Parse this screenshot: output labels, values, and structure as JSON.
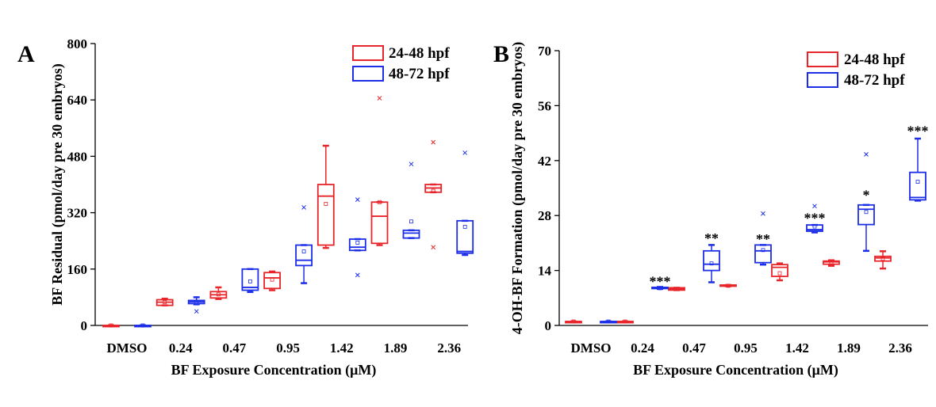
{
  "chart_data": [
    {
      "type": "box",
      "panel_label": "A",
      "xlabel": "BF Exposure Concentration (μM)",
      "ylabel": "BF Residual (pmol/day pre 30 embryos)",
      "categories": [
        "DMSO",
        "0.24",
        "0.47",
        "0.95",
        "1.42",
        "1.89",
        "2.36"
      ],
      "ylim": [
        0,
        800
      ],
      "yticks": [
        0,
        160,
        320,
        480,
        640,
        800
      ],
      "legend_position": "top-right",
      "series": [
        {
          "name": "24-48 hpf",
          "color": "#e8252a",
          "boxes": [
            {
              "min": 0,
              "q1": 0,
              "median": 0,
              "q3": 0,
              "max": 0,
              "mean": 0,
              "outliers": []
            },
            {
              "min": 57,
              "q1": 57,
              "median": 66,
              "q3": 73,
              "max": 76,
              "mean": 66,
              "outliers": []
            },
            {
              "min": 75,
              "q1": 78,
              "median": 87,
              "q3": 96,
              "max": 108,
              "mean": 88,
              "outliers": []
            },
            {
              "min": 100,
              "q1": 105,
              "median": 135,
              "q3": 150,
              "max": 153,
              "mean": 130,
              "outliers": []
            },
            {
              "min": 220,
              "q1": 228,
              "median": 367,
              "q3": 400,
              "max": 510,
              "mean": 345,
              "outliers": []
            },
            {
              "min": 228,
              "q1": 233,
              "median": 310,
              "q3": 350,
              "max": 350,
              "mean": 350,
              "outliers": [
                645
              ]
            },
            {
              "min": 378,
              "q1": 378,
              "median": 390,
              "q3": 400,
              "max": 400,
              "mean": 382,
              "outliers": [
                520,
                222
              ]
            }
          ]
        },
        {
          "name": "48-72 hpf",
          "color": "#1d2ee8",
          "boxes": [
            {
              "min": 0,
              "q1": 0,
              "median": 0,
              "q3": 0,
              "max": 0,
              "mean": 0,
              "outliers": []
            },
            {
              "min": 60,
              "q1": 62,
              "median": 67,
              "q3": 71,
              "max": 80,
              "mean": 66,
              "outliers": [
                40
              ]
            },
            {
              "min": 95,
              "q1": 100,
              "median": 108,
              "q3": 160,
              "max": 160,
              "mean": 125,
              "outliers": []
            },
            {
              "min": 120,
              "q1": 170,
              "median": 185,
              "q3": 228,
              "max": 228,
              "mean": 210,
              "outliers": [
                335
              ]
            },
            {
              "min": 213,
              "q1": 213,
              "median": 222,
              "q3": 245,
              "max": 245,
              "mean": 235,
              "outliers": [
                357,
                143
              ]
            },
            {
              "min": 248,
              "q1": 248,
              "median": 262,
              "q3": 270,
              "max": 270,
              "mean": 295,
              "outliers": [
                458
              ]
            },
            {
              "min": 200,
              "q1": 205,
              "median": 210,
              "q3": 297,
              "max": 297,
              "mean": 280,
              "outliers": [
                490
              ]
            }
          ]
        }
      ],
      "annotations": []
    },
    {
      "type": "box",
      "panel_label": "B",
      "xlabel": "BF Exposure Concentration (μM)",
      "ylabel": "4-OH-BF Formation (pmol/day pre 30 embryos)",
      "categories": [
        "DMSO",
        "0.24",
        "0.47",
        "0.95",
        "1.42",
        "1.89",
        "2.36"
      ],
      "ylim": [
        0,
        70
      ],
      "yticks": [
        0,
        14,
        28,
        42,
        56,
        70
      ],
      "legend_position": "top-right",
      "series": [
        {
          "name": "24-48 hpf",
          "color": "#e8252a",
          "boxes": [
            {
              "min": 1,
              "q1": 1,
              "median": 1,
              "q3": 1,
              "max": 1,
              "mean": 1,
              "outliers": []
            },
            {
              "min": 1,
              "q1": 1,
              "median": 1,
              "q3": 1,
              "max": 1,
              "mean": 1,
              "outliers": []
            },
            {
              "min": 9,
              "q1": 9,
              "median": 9.3,
              "q3": 9.6,
              "max": 9.6,
              "mean": 9.3,
              "outliers": []
            },
            {
              "min": 10,
              "q1": 10,
              "median": 10.1,
              "q3": 10.3,
              "max": 10.3,
              "mean": 10.1,
              "outliers": []
            },
            {
              "min": 11.5,
              "q1": 12.5,
              "median": 14.8,
              "q3": 15.5,
              "max": 15.8,
              "mean": 13.3,
              "outliers": []
            },
            {
              "min": 15.2,
              "q1": 15.6,
              "median": 16.2,
              "q3": 16.4,
              "max": 16.6,
              "mean": 16.1,
              "outliers": []
            },
            {
              "min": 14.5,
              "q1": 16.4,
              "median": 17.2,
              "q3": 17.6,
              "max": 18.9,
              "mean": 17.0,
              "outliers": []
            }
          ]
        },
        {
          "name": "48-72 hpf",
          "color": "#1d2ee8",
          "boxes": [
            {
              "min": 1,
              "q1": 1,
              "median": 1,
              "q3": 1,
              "max": 1,
              "mean": 1,
              "outliers": []
            },
            {
              "min": 9.3,
              "q1": 9.4,
              "median": 9.5,
              "q3": 9.7,
              "max": 9.8,
              "mean": 9.5,
              "outliers": []
            },
            {
              "min": 11,
              "q1": 14,
              "median": 15.6,
              "q3": 19,
              "max": 20.5,
              "mean": 15.8,
              "outliers": []
            },
            {
              "min": 15.5,
              "q1": 16,
              "median": 19,
              "q3": 20.5,
              "max": 20.5,
              "mean": 19.2,
              "outliers": [
                28.5
              ]
            },
            {
              "min": 23.7,
              "q1": 24,
              "median": 24.4,
              "q3": 25.6,
              "max": 25.6,
              "mean": 25.2,
              "outliers": [
                30.4
              ]
            },
            {
              "min": 19,
              "q1": 25.7,
              "median": 29.6,
              "q3": 30.7,
              "max": 30.7,
              "mean": 28.9,
              "outliers": [
                43.6
              ]
            },
            {
              "min": 31.8,
              "q1": 32,
              "median": 32.6,
              "q3": 39,
              "max": 47.6,
              "mean": 36.6,
              "outliers": []
            }
          ]
        }
      ],
      "annotations": [
        {
          "category": "0.24",
          "series": "48-72 hpf",
          "label": "***",
          "y": 11.2
        },
        {
          "category": "0.47",
          "series": "48-72 hpf",
          "label": "**",
          "y": 22.2
        },
        {
          "category": "0.95",
          "series": "48-72 hpf",
          "label": "**",
          "y": 22.0
        },
        {
          "category": "1.42",
          "series": "48-72 hpf",
          "label": "***",
          "y": 27.3
        },
        {
          "category": "1.89",
          "series": "48-72 hpf",
          "label": "*",
          "y": 33.2
        },
        {
          "category": "2.36",
          "series": "48-72 hpf",
          "label": "***",
          "y": 49.5
        }
      ]
    }
  ]
}
